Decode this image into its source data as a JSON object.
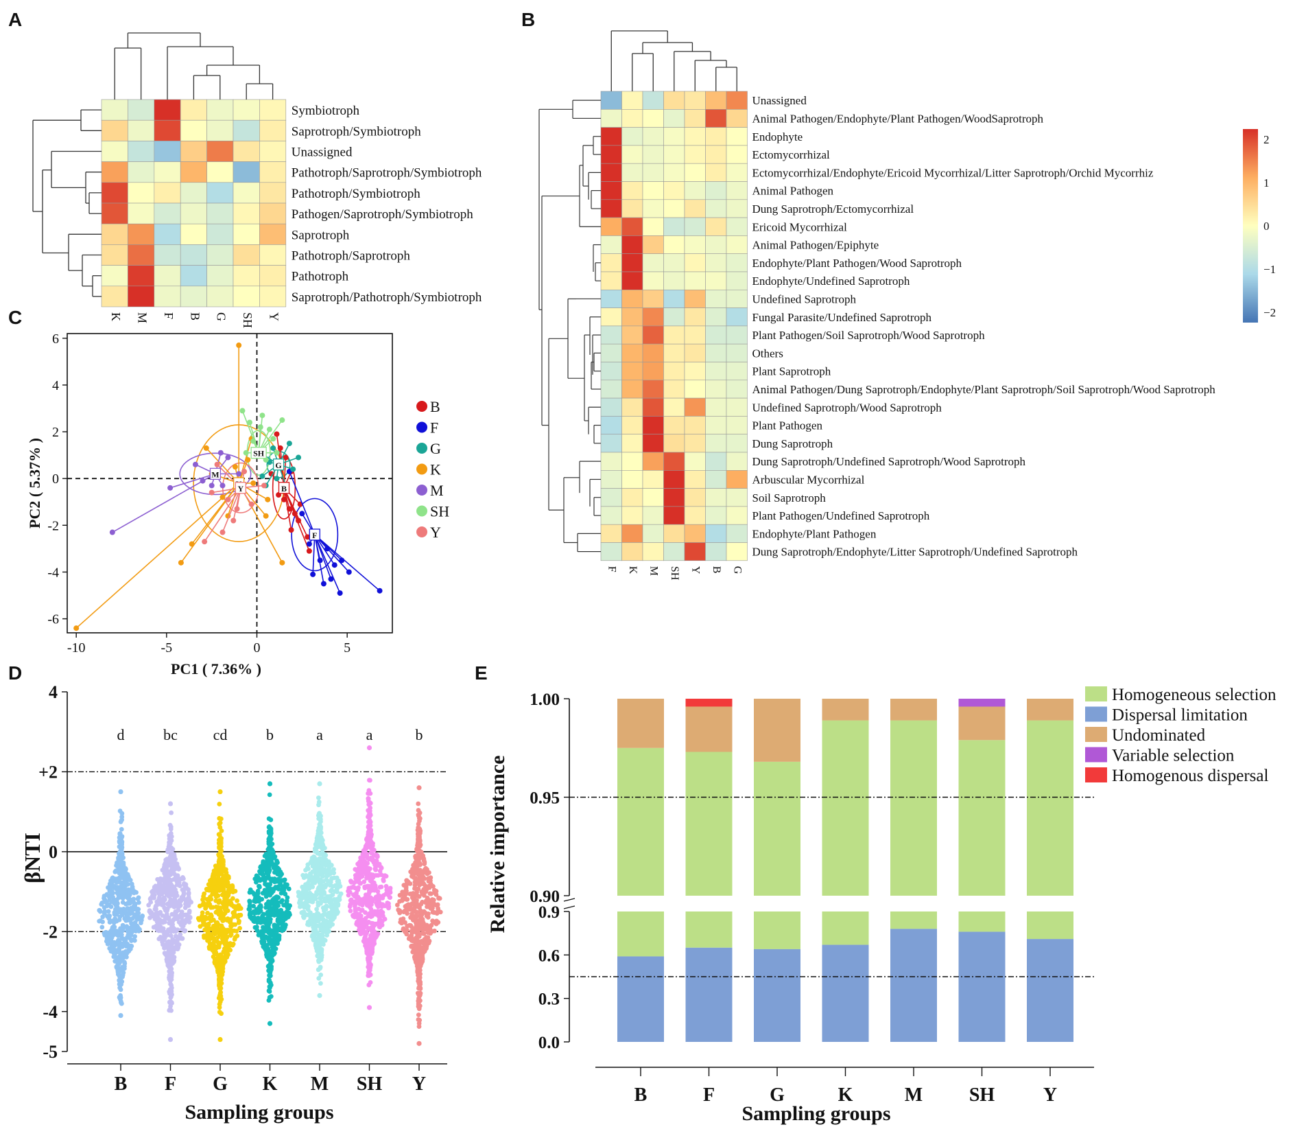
{
  "panels": {
    "A": "A",
    "B": "B",
    "C": "C",
    "D": "D",
    "E": "E"
  },
  "heatmap_A": {
    "type": "heatmap",
    "columns": [
      "K",
      "M",
      "F",
      "B",
      "G",
      "SH",
      "Y"
    ],
    "rows": [
      "Symbiotroph",
      "Saprotroph/Symbiotroph",
      "Unassigned",
      "Pathotroph/Saprotroph/Symbiotroph",
      "Pathotroph/Symbiotroph",
      "Pathogen/Saprotroph/Symbiotroph",
      "Saprotroph",
      "Pathotroph/Saprotroph",
      "Pathotroph",
      "Saprotroph/Pathotroph/Symbiotroph"
    ],
    "values": [
      [
        -0.2,
        -0.5,
        2.1,
        0.2,
        -0.2,
        -0.1,
        0.1
      ],
      [
        0.5,
        -0.2,
        1.8,
        0.0,
        -0.2,
        -0.7,
        0.2
      ],
      [
        -0.1,
        -0.7,
        -1.2,
        0.6,
        1.4,
        0.3,
        0.1
      ],
      [
        1.1,
        -0.3,
        -0.1,
        0.9,
        0.0,
        -1.3,
        0.2
      ],
      [
        1.8,
        0.0,
        0.2,
        -0.3,
        -0.9,
        -0.1,
        0.3
      ],
      [
        1.7,
        -0.1,
        -0.5,
        -0.2,
        -0.5,
        0.1,
        0.5
      ],
      [
        0.5,
        1.2,
        -0.9,
        0.0,
        -0.6,
        0.0,
        0.8
      ],
      [
        0.4,
        1.5,
        -0.6,
        -0.7,
        -0.4,
        0.4,
        0.1
      ],
      [
        -0.1,
        1.9,
        -0.2,
        -0.9,
        -0.3,
        0.1,
        0.2
      ],
      [
        0.3,
        2.1,
        -0.2,
        -0.3,
        -0.2,
        0.0,
        0.1
      ]
    ]
  },
  "heatmap_B": {
    "type": "heatmap",
    "columns": [
      "F",
      "K",
      "M",
      "SH",
      "Y",
      "B",
      "G"
    ],
    "rows": [
      "Unassigned",
      "Animal Pathogen/Endophyte/Plant Pathogen/WoodSaprotroph",
      "Endophyte",
      "Ectomycorrhizal",
      "Ectomycorrhizal/Endophyte/Ericoid Mycorrhizal/Litter Saprotroph/Orchid Mycorrhiz",
      "Animal Pathogen",
      "Dung Saprotroph/Ectomycorrhizal",
      "Ericoid Mycorrhizal",
      "Animal Pathogen/Epiphyte",
      "Endophyte/Plant Pathogen/Wood Saprotroph",
      "Endophyte/Undefined Saprotroph",
      "Undefined Saprotroph",
      "Fungal Parasite/Undefined Saprotroph",
      "Plant Pathogen/Soil Saprotroph/Wood Saprotroph",
      "Others",
      "Plant Saprotroph",
      "Animal Pathogen/Dung Saprotroph/Endophyte/Plant Saprotroph/Soil Saprotroph/Wood Saprotroph",
      "Undefined Saprotroph/Wood Saprotroph",
      "Plant Pathogen",
      "Dung Saprotroph",
      "Dung Saprotroph/Undefined Saprotroph/Wood Saprotroph",
      "Arbuscular Mycorrhizal",
      "Soil Saprotroph",
      "Plant Pathogen/Undefined Saprotroph",
      "Endophyte/Plant Pathogen",
      "Dung Saprotroph/Endophyte/Litter Saprotroph/Undefined Saprotroph"
    ],
    "values": [
      [
        -1.3,
        0.1,
        -0.7,
        0.4,
        0.3,
        0.8,
        1.3
      ],
      [
        -0.2,
        0.1,
        0.0,
        -0.3,
        0.3,
        1.7,
        0.5
      ],
      [
        2.1,
        -0.3,
        -0.2,
        -0.1,
        0.1,
        0.2,
        0.0
      ],
      [
        2.1,
        -0.1,
        -0.2,
        -0.1,
        0.1,
        0.2,
        0.0
      ],
      [
        2.1,
        -0.2,
        -0.2,
        -0.1,
        0.0,
        0.2,
        -0.1
      ],
      [
        2.0,
        0.2,
        0.0,
        0.1,
        -0.2,
        -0.4,
        -0.2
      ],
      [
        2.0,
        0.3,
        -0.1,
        0.0,
        0.3,
        -0.3,
        -0.2
      ],
      [
        1.0,
        1.7,
        0.0,
        -0.6,
        -0.5,
        0.3,
        -0.3
      ],
      [
        -0.2,
        2.1,
        0.6,
        0.0,
        -0.1,
        -0.2,
        -0.1
      ],
      [
        0.2,
        2.1,
        -0.2,
        -0.2,
        0.1,
        -0.2,
        -0.3
      ],
      [
        0.2,
        2.1,
        -0.1,
        -0.2,
        -0.1,
        -0.1,
        -0.3
      ],
      [
        -0.9,
        0.9,
        0.6,
        -0.9,
        0.8,
        -0.3,
        -0.3
      ],
      [
        0.1,
        0.8,
        1.3,
        -0.5,
        0.3,
        -0.4,
        -0.9
      ],
      [
        -0.6,
        0.7,
        1.6,
        0.2,
        0.2,
        -0.5,
        -0.5
      ],
      [
        -0.5,
        0.9,
        1.1,
        0.2,
        0.3,
        -0.4,
        -0.4
      ],
      [
        -0.6,
        0.9,
        1.1,
        0.2,
        0.1,
        -0.3,
        -0.3
      ],
      [
        -0.5,
        0.9,
        1.5,
        0.2,
        0.0,
        -0.2,
        -0.3
      ],
      [
        -0.7,
        0.3,
        1.7,
        0.1,
        1.2,
        -0.2,
        -0.2
      ],
      [
        -0.9,
        0.2,
        2.0,
        0.3,
        0.3,
        -0.2,
        -0.2
      ],
      [
        -0.8,
        0.1,
        2.0,
        0.4,
        0.3,
        -0.3,
        -0.3
      ],
      [
        -0.2,
        0.0,
        1.1,
        1.7,
        -0.1,
        -0.6,
        -0.2
      ],
      [
        -0.3,
        0.0,
        0.1,
        2.0,
        0.2,
        -0.5,
        1.0
      ],
      [
        -0.4,
        0.2,
        0.0,
        2.1,
        0.3,
        -0.2,
        -0.2
      ],
      [
        -0.3,
        0.1,
        -0.2,
        2.1,
        0.2,
        -0.3,
        -0.1
      ],
      [
        0.3,
        1.2,
        -0.3,
        0.4,
        0.8,
        -0.9,
        -0.5
      ],
      [
        -0.5,
        0.4,
        0.1,
        -0.5,
        1.8,
        -0.6,
        0.0
      ]
    ],
    "colorbar_ticks": [
      "2",
      "1",
      "0",
      "−1",
      "−2"
    ]
  },
  "pcoa_C": {
    "type": "scatter",
    "xlabel": "PC1 ( 7.36% )",
    "ylabel": "PC2 ( 5.37% )",
    "xlim": [
      -10.5,
      7.5
    ],
    "ylim": [
      -6.6,
      6.2
    ],
    "xticks": [
      -10,
      -5,
      0,
      5
    ],
    "yticks": [
      6,
      4,
      2,
      0,
      -2,
      -4,
      -6
    ],
    "groups": [
      {
        "name": "B",
        "color": "#d7191c",
        "centroid": [
          1.5,
          -0.4
        ],
        "points": [
          [
            1.1,
            1.9
          ],
          [
            1.3,
            1.3
          ],
          [
            1.6,
            0.9
          ],
          [
            1.9,
            0.3
          ],
          [
            1.5,
            -0.9
          ],
          [
            1.8,
            -1.3
          ],
          [
            2.1,
            -1.5
          ],
          [
            2.3,
            -1.8
          ],
          [
            2.8,
            -2.5
          ],
          [
            2.9,
            -3.1
          ],
          [
            1.9,
            -2.2
          ],
          [
            1.2,
            -0.7
          ],
          [
            0.8,
            0.2
          ],
          [
            2.4,
            -1.1
          ]
        ]
      },
      {
        "name": "F",
        "color": "#1010d8",
        "centroid": [
          3.2,
          -2.4
        ],
        "points": [
          [
            6.8,
            -4.8
          ],
          [
            4.6,
            -4.9
          ],
          [
            4.1,
            -4.3
          ],
          [
            5.1,
            -4.0
          ],
          [
            3.5,
            -3.5
          ],
          [
            3.9,
            -3.0
          ],
          [
            2.5,
            -1.5
          ],
          [
            4.3,
            -3.7
          ],
          [
            3.1,
            -4.1
          ],
          [
            1.8,
            0.3
          ],
          [
            4.7,
            -3.5
          ],
          [
            2.9,
            -2.8
          ],
          [
            3.7,
            -4.5
          ]
        ]
      },
      {
        "name": "G",
        "color": "#1aa596",
        "centroid": [
          1.2,
          0.6
        ],
        "points": [
          [
            0.3,
            0.1
          ],
          [
            0.9,
            1.3
          ],
          [
            1.8,
            1.5
          ],
          [
            2.0,
            0.4
          ],
          [
            1.1,
            0.0
          ],
          [
            0.2,
            1.1
          ],
          [
            1.6,
            -0.3
          ],
          [
            0.7,
            0.7
          ],
          [
            2.3,
            0.9
          ],
          [
            0.5,
            -0.3
          ]
        ]
      },
      {
        "name": "K",
        "color": "#f29b12",
        "centroid": [
          -1.0,
          -0.2
        ],
        "points": [
          [
            -10.0,
            -6.4
          ],
          [
            -4.2,
            -3.6
          ],
          [
            -3.6,
            -2.8
          ],
          [
            -1.0,
            5.7
          ],
          [
            -2.5,
            0.2
          ],
          [
            -1.6,
            -1.6
          ],
          [
            0.5,
            -1.6
          ],
          [
            1.4,
            -3.6
          ],
          [
            -0.3,
            1.7
          ],
          [
            -1.2,
            0.5
          ],
          [
            -2.8,
            1.3
          ],
          [
            -1.9,
            -0.8
          ],
          [
            0.6,
            -0.9
          ],
          [
            -0.5,
            0.8
          ],
          [
            -0.2,
            -0.2
          ]
        ]
      },
      {
        "name": "M",
        "color": "#8c5fd1",
        "centroid": [
          -2.3,
          0.2
        ],
        "points": [
          [
            -8.0,
            -2.3
          ],
          [
            -4.8,
            -0.4
          ],
          [
            -3.4,
            0.6
          ],
          [
            -2.5,
            -0.3
          ],
          [
            -1.6,
            0.9
          ],
          [
            -1.0,
            0.2
          ],
          [
            -2.0,
            1.1
          ],
          [
            -3.0,
            -0.1
          ],
          [
            -1.9,
            -0.3
          ]
        ]
      },
      {
        "name": "SH",
        "color": "#8fe38a",
        "centroid": [
          0.1,
          1.1
        ],
        "points": [
          [
            -0.8,
            2.9
          ],
          [
            -0.4,
            2.4
          ],
          [
            0.3,
            2.7
          ],
          [
            0.7,
            2.1
          ],
          [
            1.4,
            2.5
          ],
          [
            -0.2,
            1.6
          ],
          [
            0.9,
            1.7
          ],
          [
            0.5,
            0.8
          ],
          [
            -0.6,
            1.1
          ],
          [
            1.1,
            1.1
          ],
          [
            0.2,
            2.2
          ]
        ]
      },
      {
        "name": "Y",
        "color": "#ee7a7a",
        "centroid": [
          -0.9,
          -0.4
        ],
        "points": [
          [
            -2.9,
            -2.7
          ],
          [
            -1.9,
            -2.3
          ],
          [
            -1.3,
            -1.8
          ],
          [
            -0.3,
            -1.1
          ],
          [
            -1.6,
            -0.9
          ],
          [
            -2.2,
            0.6
          ],
          [
            0.4,
            -0.3
          ],
          [
            -2.5,
            -0.6
          ],
          [
            -0.7,
            0.3
          ],
          [
            -1.1,
            -1.3
          ]
        ]
      }
    ]
  },
  "violin_D": {
    "type": "scatter",
    "ylabel": "βNTI",
    "xlabel": "Sampling groups",
    "ylim": [
      -5,
      4
    ],
    "yticks": [
      "4",
      "+2",
      "0",
      "-2",
      "-4",
      "-5"
    ],
    "ytick_values": [
      4,
      2,
      0,
      -2,
      -4,
      -5
    ],
    "ref_lines": [
      2,
      0,
      -2
    ],
    "groups": [
      {
        "name": "B",
        "letter": "d",
        "color": "#8fc2f2",
        "center": -1.6,
        "min": -4.1,
        "max": 1.5
      },
      {
        "name": "F",
        "letter": "bc",
        "color": "#c6c0f2",
        "center": -1.4,
        "min": -4.7,
        "max": 1.2
      },
      {
        "name": "G",
        "letter": "cd",
        "color": "#f6d00e",
        "center": -1.6,
        "min": -4.7,
        "max": 1.5
      },
      {
        "name": "K",
        "letter": "b",
        "color": "#15bcbc",
        "center": -1.3,
        "min": -4.3,
        "max": 1.7
      },
      {
        "name": "M",
        "letter": "a",
        "color": "#a9ebec",
        "center": -1.1,
        "min": -3.6,
        "max": 1.7
      },
      {
        "name": "SH",
        "letter": "a",
        "color": "#f58ef0",
        "center": -1.1,
        "min": -3.9,
        "max": 2.6
      },
      {
        "name": "Y",
        "letter": "b",
        "color": "#f28e8e",
        "center": -1.4,
        "min": -4.8,
        "max": 1.6
      }
    ]
  },
  "bar_E": {
    "type": "bar",
    "ylabel": "Relative importance",
    "xlabel": "Sampling groups",
    "categories": [
      "B",
      "F",
      "G",
      "K",
      "M",
      "SH",
      "Y"
    ],
    "upper_yticks": [
      "1.00",
      "0.95",
      "0.90"
    ],
    "lower_yticks": [
      "0.9",
      "0.6",
      "0.3",
      "0.0"
    ],
    "legend": [
      {
        "name": "Homogeneous selection",
        "color": "#bcdf87"
      },
      {
        "name": "Dispersal limitation",
        "color": "#7e9fd5"
      },
      {
        "name": "Undominated",
        "color": "#ddab73"
      },
      {
        "name": "Variable selection",
        "color": "#b058d6"
      },
      {
        "name": "Homogenous dispersal",
        "color": "#f23a3a"
      }
    ],
    "upper_series": {
      "homogeneous_selection_top": [
        0.975,
        0.973,
        0.968,
        0.989,
        0.989,
        0.979,
        0.989
      ],
      "undominated_top": [
        1.0,
        0.996,
        1.0,
        1.0,
        1.0,
        0.996,
        1.0
      ],
      "variable_selection_top": [
        1.0,
        0.996,
        1.0,
        1.0,
        1.0,
        0.9995,
        1.0
      ],
      "homogenous_dispersal_top": [
        1.0,
        0.9995,
        1.0,
        1.0,
        1.0,
        0.9995,
        1.0
      ]
    },
    "lower_series": {
      "dispersal_limitation": [
        0.59,
        0.65,
        0.64,
        0.67,
        0.78,
        0.76,
        0.71
      ]
    },
    "upper_ref": 0.95,
    "lower_ref": 0.45
  }
}
